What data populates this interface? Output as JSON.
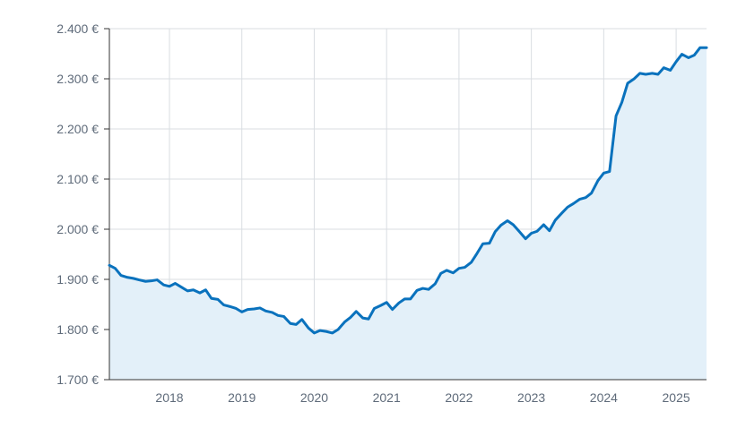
{
  "chart_data": {
    "type": "area",
    "title": "",
    "xlabel": "",
    "ylabel": "",
    "y_unit_suffix": " €",
    "ylim": [
      1700,
      2400
    ],
    "xlim": [
      2017.17,
      2025.42
    ],
    "grid": true,
    "colors": {
      "line": "#0a72bd",
      "fill": "#e3f0f9",
      "grid": "#d9dde2",
      "axis": "#333333",
      "text": "#5f6b7a"
    },
    "y_ticks": [
      {
        "value": 1700,
        "label": "1.700 €"
      },
      {
        "value": 1800,
        "label": "1.800 €"
      },
      {
        "value": 1900,
        "label": "1.900 €"
      },
      {
        "value": 2000,
        "label": "2.000 €"
      },
      {
        "value": 2100,
        "label": "2.100 €"
      },
      {
        "value": 2200,
        "label": "2.200 €"
      },
      {
        "value": 2300,
        "label": "2.300 €"
      },
      {
        "value": 2400,
        "label": "2.400 €"
      }
    ],
    "x_ticks": [
      {
        "value": 2018,
        "label": "2018"
      },
      {
        "value": 2019,
        "label": "2019"
      },
      {
        "value": 2020,
        "label": "2020"
      },
      {
        "value": 2021,
        "label": "2021"
      },
      {
        "value": 2022,
        "label": "2022"
      },
      {
        "value": 2023,
        "label": "2023"
      },
      {
        "value": 2024,
        "label": "2024"
      },
      {
        "value": 2025,
        "label": "2025"
      }
    ],
    "series": [
      {
        "values": [
          [
            2017.17,
            1928
          ],
          [
            2017.25,
            1922
          ],
          [
            2017.33,
            1908
          ],
          [
            2017.42,
            1904
          ],
          [
            2017.5,
            1902
          ],
          [
            2017.58,
            1899
          ],
          [
            2017.67,
            1896
          ],
          [
            2017.75,
            1897
          ],
          [
            2017.83,
            1899
          ],
          [
            2017.92,
            1889
          ],
          [
            2018.0,
            1886
          ],
          [
            2018.08,
            1892
          ],
          [
            2018.17,
            1884
          ],
          [
            2018.25,
            1877
          ],
          [
            2018.33,
            1879
          ],
          [
            2018.42,
            1873
          ],
          [
            2018.5,
            1879
          ],
          [
            2018.58,
            1862
          ],
          [
            2018.67,
            1860
          ],
          [
            2018.75,
            1849
          ],
          [
            2018.83,
            1846
          ],
          [
            2018.92,
            1842
          ],
          [
            2019.0,
            1835
          ],
          [
            2019.08,
            1840
          ],
          [
            2019.17,
            1841
          ],
          [
            2019.25,
            1843
          ],
          [
            2019.33,
            1837
          ],
          [
            2019.42,
            1834
          ],
          [
            2019.5,
            1828
          ],
          [
            2019.58,
            1826
          ],
          [
            2019.67,
            1812
          ],
          [
            2019.75,
            1810
          ],
          [
            2019.83,
            1820
          ],
          [
            2019.92,
            1803
          ],
          [
            2020.0,
            1793
          ],
          [
            2020.08,
            1798
          ],
          [
            2020.17,
            1796
          ],
          [
            2020.25,
            1793
          ],
          [
            2020.33,
            1800
          ],
          [
            2020.42,
            1815
          ],
          [
            2020.5,
            1824
          ],
          [
            2020.58,
            1836
          ],
          [
            2020.67,
            1823
          ],
          [
            2020.75,
            1821
          ],
          [
            2020.83,
            1842
          ],
          [
            2020.92,
            1848
          ],
          [
            2021.0,
            1854
          ],
          [
            2021.08,
            1840
          ],
          [
            2021.17,
            1853
          ],
          [
            2021.25,
            1861
          ],
          [
            2021.33,
            1861
          ],
          [
            2021.42,
            1878
          ],
          [
            2021.5,
            1882
          ],
          [
            2021.58,
            1880
          ],
          [
            2021.67,
            1891
          ],
          [
            2021.75,
            1912
          ],
          [
            2021.83,
            1918
          ],
          [
            2021.92,
            1913
          ],
          [
            2022.0,
            1922
          ],
          [
            2022.08,
            1924
          ],
          [
            2022.17,
            1934
          ],
          [
            2022.25,
            1952
          ],
          [
            2022.33,
            1971
          ],
          [
            2022.42,
            1972
          ],
          [
            2022.5,
            1995
          ],
          [
            2022.58,
            2008
          ],
          [
            2022.67,
            2017
          ],
          [
            2022.75,
            2009
          ],
          [
            2022.83,
            1996
          ],
          [
            2022.92,
            1981
          ],
          [
            2023.0,
            1992
          ],
          [
            2023.08,
            1996
          ],
          [
            2023.17,
            2009
          ],
          [
            2023.25,
            1997
          ],
          [
            2023.33,
            2018
          ],
          [
            2023.42,
            2032
          ],
          [
            2023.5,
            2044
          ],
          [
            2023.58,
            2051
          ],
          [
            2023.67,
            2060
          ],
          [
            2023.75,
            2063
          ],
          [
            2023.83,
            2072
          ],
          [
            2023.92,
            2097
          ],
          [
            2024.0,
            2112
          ],
          [
            2024.08,
            2115
          ],
          [
            2024.17,
            2226
          ],
          [
            2024.25,
            2253
          ],
          [
            2024.33,
            2291
          ],
          [
            2024.42,
            2300
          ],
          [
            2024.5,
            2311
          ],
          [
            2024.58,
            2309
          ],
          [
            2024.67,
            2311
          ],
          [
            2024.75,
            2309
          ],
          [
            2024.83,
            2322
          ],
          [
            2024.92,
            2317
          ],
          [
            2025.0,
            2334
          ],
          [
            2025.08,
            2349
          ],
          [
            2025.17,
            2342
          ],
          [
            2025.25,
            2347
          ],
          [
            2025.33,
            2362
          ],
          [
            2025.42,
            2362
          ]
        ]
      }
    ]
  }
}
